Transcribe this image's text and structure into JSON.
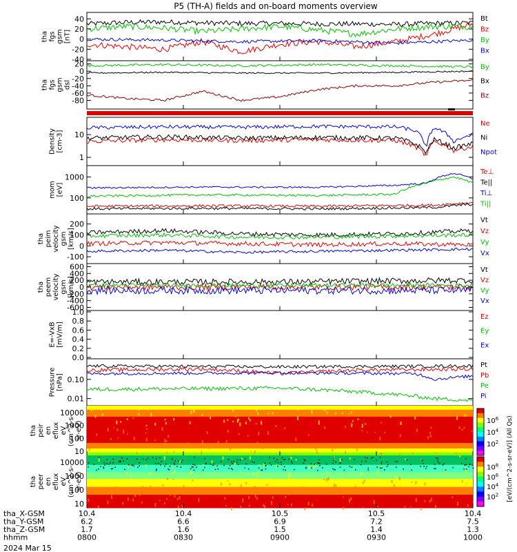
{
  "title": "P5 (TH-A) fields and on-board moments overview",
  "date_label": "2024 Mar 15",
  "chart_data": [
    {
      "type": "line",
      "ylabel": [
        "tha",
        "fgs",
        "gsm",
        "[nT]"
      ],
      "ylim": [
        -40,
        50
      ],
      "yticks": [
        40,
        20,
        0,
        -20,
        -40
      ],
      "log": false,
      "grid": false,
      "series": [
        {
          "name": "Bt",
          "color": "#000000",
          "pts": [
            [
              0,
              30
            ],
            [
              0.1,
              33
            ],
            [
              0.2,
              34
            ],
            [
              0.3,
              32
            ],
            [
              0.4,
              31
            ],
            [
              0.5,
              31
            ],
            [
              0.6,
              30
            ],
            [
              0.7,
              30
            ],
            [
              0.8,
              29
            ],
            [
              0.9,
              31
            ],
            [
              1,
              32
            ]
          ],
          "noise": 5
        },
        {
          "name": "Bz",
          "color": "#e00000",
          "pts": [
            [
              0,
              -10
            ],
            [
              0.1,
              -15
            ],
            [
              0.2,
              -20
            ],
            [
              0.3,
              -5
            ],
            [
              0.4,
              -25
            ],
            [
              0.5,
              -10
            ],
            [
              0.6,
              -5
            ],
            [
              0.7,
              -15
            ],
            [
              0.8,
              -5
            ],
            [
              0.9,
              10
            ],
            [
              1,
              30
            ]
          ],
          "noise": 6
        },
        {
          "name": "By",
          "color": "#00c000",
          "pts": [
            [
              0,
              20
            ],
            [
              0.1,
              25
            ],
            [
              0.2,
              22
            ],
            [
              0.3,
              15
            ],
            [
              0.4,
              20
            ],
            [
              0.5,
              25
            ],
            [
              0.6,
              18
            ],
            [
              0.7,
              10
            ],
            [
              0.8,
              20
            ],
            [
              0.9,
              25
            ],
            [
              1,
              25
            ]
          ],
          "noise": 6
        },
        {
          "name": "Bx",
          "color": "#0000e0",
          "pts": [
            [
              0,
              0
            ],
            [
              0.2,
              -2
            ],
            [
              0.4,
              -5
            ],
            [
              0.6,
              -3
            ],
            [
              0.8,
              -8
            ],
            [
              1,
              -2
            ]
          ],
          "noise": 3
        }
      ]
    },
    {
      "type": "line",
      "ylabel": [
        "tha",
        "fgs",
        "gsm",
        "dsl"
      ],
      "ylim": [
        -100,
        25
      ],
      "yticks": [
        20,
        0,
        -20,
        -40,
        -60,
        -80
      ],
      "log": false,
      "grid": false,
      "series": [
        {
          "name": "By",
          "color": "#00c000",
          "pts": [
            [
              0,
              15
            ],
            [
              0.2,
              18
            ],
            [
              0.4,
              15
            ],
            [
              0.6,
              18
            ],
            [
              0.8,
              15
            ],
            [
              1,
              12
            ]
          ],
          "noise": 3
        },
        {
          "name": "Bx",
          "color": "#000000",
          "pts": [
            [
              0,
              -5
            ],
            [
              0.2,
              -3
            ],
            [
              0.4,
              -5
            ],
            [
              0.6,
              -5
            ],
            [
              0.8,
              -3
            ],
            [
              1,
              0
            ]
          ],
          "noise": 2
        },
        {
          "name": "Bz",
          "color": "#8b0000",
          "pts": [
            [
              0,
              -65
            ],
            [
              0.1,
              -75
            ],
            [
              0.2,
              -80
            ],
            [
              0.3,
              -55
            ],
            [
              0.4,
              -80
            ],
            [
              0.5,
              -70
            ],
            [
              0.6,
              -50
            ],
            [
              0.7,
              -40
            ],
            [
              0.8,
              -40
            ],
            [
              0.9,
              -30
            ],
            [
              1,
              -25
            ]
          ],
          "noise": 3
        }
      ]
    },
    {
      "type": "line",
      "ylabel": [
        "Density",
        "[cm-3]"
      ],
      "ylim": [
        0.5,
        50
      ],
      "yticks": [
        10,
        1
      ],
      "log": true,
      "grid": false,
      "series": [
        {
          "name": "Ne",
          "color": "#e00000",
          "pts": [
            [
              0,
              5
            ],
            [
              0.2,
              6
            ],
            [
              0.4,
              5.5
            ],
            [
              0.6,
              6
            ],
            [
              0.8,
              5.5
            ],
            [
              0.85,
              3
            ],
            [
              0.88,
              1
            ],
            [
              0.9,
              5
            ],
            [
              0.95,
              2
            ],
            [
              1,
              3
            ]
          ],
          "noise": 0.1
        },
        {
          "name": "Ni",
          "color": "#000000",
          "pts": [
            [
              0,
              7
            ],
            [
              0.2,
              8
            ],
            [
              0.4,
              7
            ],
            [
              0.6,
              7.5
            ],
            [
              0.8,
              7
            ],
            [
              0.85,
              4
            ],
            [
              0.88,
              1.5
            ],
            [
              0.9,
              6
            ],
            [
              0.95,
              2.5
            ],
            [
              1,
              4
            ]
          ],
          "noise": 0.1
        },
        {
          "name": "Npot",
          "color": "#0000e0",
          "pts": [
            [
              0,
              20
            ],
            [
              0.2,
              22
            ],
            [
              0.4,
              21
            ],
            [
              0.6,
              23
            ],
            [
              0.8,
              22
            ],
            [
              0.85,
              15
            ],
            [
              0.88,
              2
            ],
            [
              0.9,
              20
            ],
            [
              0.95,
              5
            ],
            [
              1,
              10
            ]
          ],
          "noise": 0.08
        }
      ]
    },
    {
      "type": "line",
      "ylabel": [
        "mom",
        "[eV]"
      ],
      "ylim": [
        20,
        3000
      ],
      "yticks": [
        1000,
        100
      ],
      "log": true,
      "grid": false,
      "series": [
        {
          "name": "Te⊥",
          "color": "#e00000",
          "pts": [
            [
              0,
              40
            ],
            [
              0.3,
              42
            ],
            [
              0.6,
              40
            ],
            [
              0.9,
              45
            ],
            [
              1,
              60
            ]
          ],
          "noise": 0.06
        },
        {
          "name": "Te||",
          "color": "#000000",
          "pts": [
            [
              0,
              30
            ],
            [
              0.3,
              32
            ],
            [
              0.6,
              30
            ],
            [
              0.9,
              35
            ],
            [
              1,
              50
            ]
          ],
          "noise": 0.06
        },
        {
          "name": "Ti⊥",
          "color": "#0000e0",
          "pts": [
            [
              0,
              300
            ],
            [
              0.3,
              330
            ],
            [
              0.6,
              320
            ],
            [
              0.8,
              400
            ],
            [
              0.88,
              500
            ],
            [
              0.95,
              1500
            ],
            [
              1,
              800
            ]
          ],
          "noise": 0.04
        },
        {
          "name": "Ti||",
          "color": "#00c000",
          "pts": [
            [
              0,
              120
            ],
            [
              0.3,
              140
            ],
            [
              0.6,
              130
            ],
            [
              0.8,
              150
            ],
            [
              0.88,
              500
            ],
            [
              0.95,
              1000
            ],
            [
              1,
              500
            ]
          ],
          "noise": 0.05
        }
      ]
    },
    {
      "type": "line",
      "ylabel": [
        "tha",
        "peim",
        "velocity",
        "gsm",
        "[km/s]"
      ],
      "ylim": [
        -150,
        280
      ],
      "yticks": [
        200,
        100,
        0,
        -100
      ],
      "log": false,
      "grid": false,
      "series": [
        {
          "name": "Vt",
          "color": "#000000",
          "pts": [
            [
              0,
              120
            ],
            [
              0.2,
              140
            ],
            [
              0.4,
              110
            ],
            [
              0.6,
              100
            ],
            [
              0.8,
              110
            ],
            [
              1,
              140
            ]
          ],
          "noise": 20
        },
        {
          "name": "Vz",
          "color": "#e00000",
          "pts": [
            [
              0,
              20
            ],
            [
              0.2,
              30
            ],
            [
              0.4,
              20
            ],
            [
              0.6,
              10
            ],
            [
              0.8,
              20
            ],
            [
              1,
              10
            ]
          ],
          "noise": 20
        },
        {
          "name": "Vy",
          "color": "#00c000",
          "pts": [
            [
              0,
              90
            ],
            [
              0.2,
              100
            ],
            [
              0.4,
              80
            ],
            [
              0.6,
              80
            ],
            [
              0.8,
              90
            ],
            [
              1,
              100
            ]
          ],
          "noise": 18
        },
        {
          "name": "Vx",
          "color": "#0000e0",
          "pts": [
            [
              0,
              -50
            ],
            [
              0.2,
              -40
            ],
            [
              0.4,
              -60
            ],
            [
              0.6,
              -50
            ],
            [
              0.8,
              -40
            ],
            [
              1,
              -30
            ]
          ],
          "noise": 12
        }
      ]
    },
    {
      "type": "line",
      "ylabel": [
        "tha",
        "peem",
        "velocity",
        "gsm",
        "[km/s]"
      ],
      "ylim": [
        -650,
        650
      ],
      "yticks": [
        600,
        400,
        200,
        0,
        -200,
        -400,
        -600
      ],
      "log": false,
      "grid": false,
      "series": [
        {
          "name": "Vt",
          "color": "#000000",
          "pts": [
            [
              0,
              150
            ],
            [
              0.5,
              150
            ],
            [
              1,
              200
            ]
          ],
          "noise": 90
        },
        {
          "name": "Vz",
          "color": "#e00000",
          "pts": [
            [
              0,
              0
            ],
            [
              0.5,
              0
            ],
            [
              1,
              0
            ]
          ],
          "noise": 90
        },
        {
          "name": "Vy",
          "color": "#00c000",
          "pts": [
            [
              0,
              50
            ],
            [
              0.5,
              50
            ],
            [
              1,
              50
            ]
          ],
          "noise": 60
        },
        {
          "name": "Vx",
          "color": "#0000e0",
          "pts": [
            [
              0,
              -100
            ],
            [
              0.5,
              -100
            ],
            [
              1,
              -100
            ]
          ],
          "noise": 110
        }
      ]
    },
    {
      "type": "line",
      "ylabel": [
        "E=-VxB",
        "[mV/m]"
      ],
      "ylim": [
        0,
        1
      ],
      "yticks": [
        "1.0",
        "0.8",
        "0.6",
        "0.4",
        "0.2",
        "0.0"
      ],
      "log": false,
      "grid": false,
      "series": [
        {
          "name": "Ez",
          "color": "#e00000",
          "pts": []
        },
        {
          "name": "Ey",
          "color": "#00c000",
          "pts": []
        },
        {
          "name": "Ex",
          "color": "#0000e0",
          "pts": []
        }
      ]
    },
    {
      "type": "line",
      "ylabel": [
        "Pressure",
        "[nPa]"
      ],
      "ylim": [
        0.005,
        1
      ],
      "yticks": [
        "0.10",
        "0.01"
      ],
      "log": true,
      "grid": false,
      "series": [
        {
          "name": "Pt",
          "color": "#000000",
          "pts": [
            [
              0,
              0.5
            ],
            [
              0.5,
              0.45
            ],
            [
              1,
              0.5
            ]
          ],
          "noise": 0.08
        },
        {
          "name": "Pb",
          "color": "#e00000",
          "pts": [
            [
              0,
              0.3
            ],
            [
              0.3,
              0.35
            ],
            [
              0.5,
              0.2
            ],
            [
              0.7,
              0.3
            ],
            [
              1,
              0.35
            ]
          ],
          "noise": 0.1
        },
        {
          "name": "Pe",
          "color": "#00c000",
          "pts": [
            [
              0,
              0.03
            ],
            [
              0.5,
              0.035
            ],
            [
              0.9,
              0.01
            ],
            [
              1,
              0.008
            ]
          ],
          "noise": 0.1
        },
        {
          "name": "Pi",
          "color": "#0000e0",
          "pts": [
            [
              0,
              0.2
            ],
            [
              0.5,
              0.22
            ],
            [
              0.85,
              0.2
            ],
            [
              0.9,
              0.1
            ],
            [
              1,
              0.15
            ]
          ],
          "noise": 0.08
        }
      ]
    },
    {
      "type": "heatmap",
      "ylabel": [
        "tha",
        "peir",
        "en",
        "eflux",
        "eV",
        "(cm^2-s-",
        "sr-eV)"
      ],
      "yticks": [
        10000,
        1000,
        100,
        10
      ],
      "log": true
    },
    {
      "type": "heatmap",
      "ylabel": [
        "tha",
        "peer",
        "en",
        "eflux",
        "eV",
        "(cm^2-s-",
        "sr-eV)"
      ],
      "yticks": [
        10000,
        1000,
        100,
        10
      ],
      "log": true
    }
  ],
  "colorbar1": {
    "ticks": [
      "10^6",
      "10^4",
      "10^2"
    ],
    "label": "[eV/(cm^2-s-sr-eV)]"
  },
  "colorbar2": {
    "ticks": [
      "10^8",
      "10^6",
      "10^4",
      "10^2"
    ],
    "label": "[eV/(cm^2-s-sr-eV)] (All Qs)"
  },
  "xaxis": {
    "rows": [
      {
        "label": "tha_X-GSM",
        "values": [
          "10.4",
          "10.4",
          "10.5",
          "10.5",
          "10.4"
        ]
      },
      {
        "label": "tha_Y-GSM",
        "values": [
          "6.2",
          "6.6",
          "6.9",
          "7.2",
          "7.5"
        ]
      },
      {
        "label": "tha_Z-GSM",
        "values": [
          "1.7",
          "1.6",
          "1.5",
          "1.4",
          "1.3"
        ]
      },
      {
        "label": "hhmm",
        "values": [
          "0800",
          "0830",
          "0900",
          "0930",
          "1000"
        ]
      }
    ]
  },
  "colors": {
    "red": "#e00000",
    "green": "#00c000",
    "blue": "#0000e0",
    "black": "#000000"
  }
}
